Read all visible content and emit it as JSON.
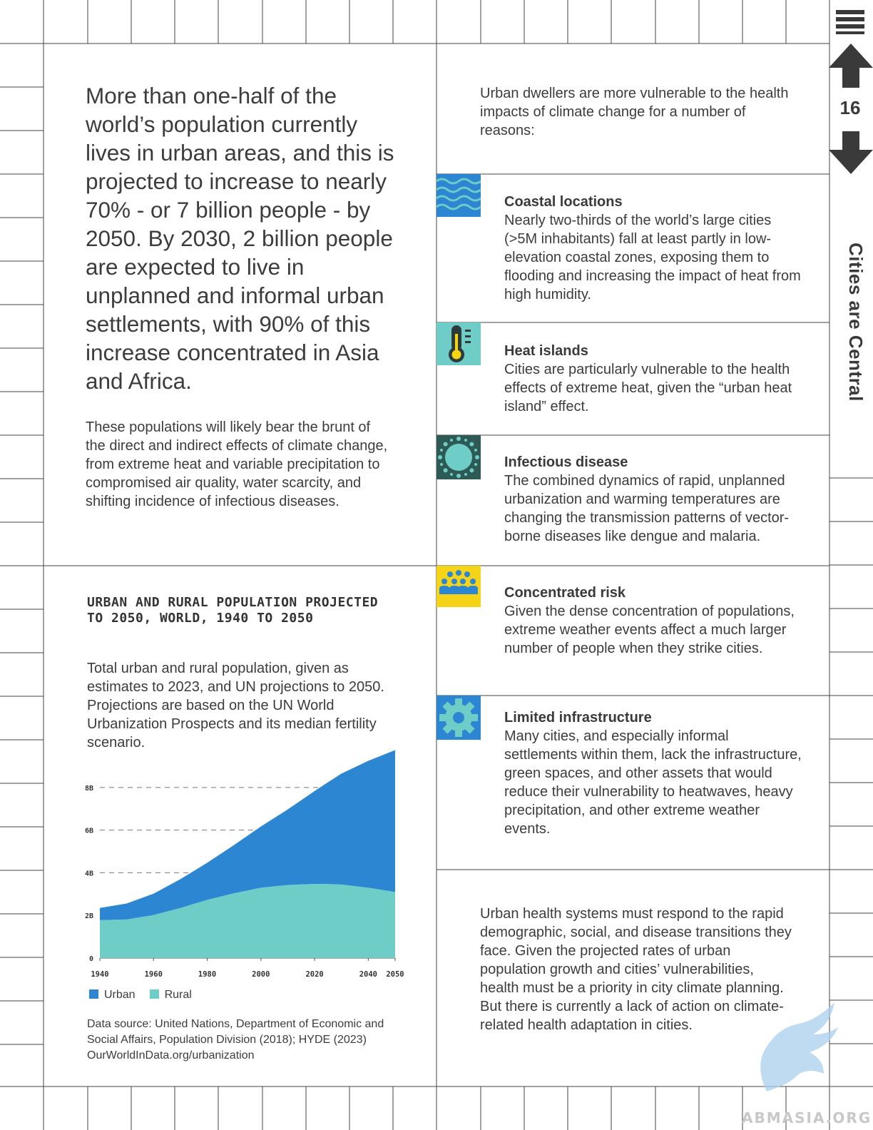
{
  "page": {
    "number": "16",
    "section_tab": "Cities are Central"
  },
  "left": {
    "lead": "More than one-half of the world’s population currently lives in urban areas, and this is projected to increase to nearly 70% - or 7 billion people - by 2050. By 2030, 2 billion people are expected to live in unplanned and informal urban settlements, with 90% of this increase concentrated in Asia and Africa.",
    "body": "These populations will likely bear the brunt of the direct and indirect effects of climate change, from extreme heat and variable precipitation to compromised air quality, water scarcity, and shifting incidence of infectious diseases."
  },
  "chart": {
    "title": "URBAN AND RURAL POPULATION PROJECTED TO 2050, WORLD, 1940 TO 2050",
    "subtitle": "Total urban and rural population, given as estimates to 2023, and UN projections to 2050. Projections are based on the UN World Urbanization Prospects and its median fertility scenario.",
    "source": "Data source: United Nations, Department of Economic and Social Affairs, Population Division (2018); HYDE (2023) OurWorldInData.org/urbanization",
    "legend": {
      "urban": "Urban",
      "rural": "Rural"
    }
  },
  "chart_data": {
    "type": "area",
    "stacked": true,
    "x": [
      1940,
      1950,
      1960,
      1970,
      1980,
      1990,
      2000,
      2010,
      2020,
      2023,
      2030,
      2040,
      2050
    ],
    "x_ticks": [
      "1940",
      "1960",
      "1980",
      "2000",
      "2020",
      "2040",
      "2050"
    ],
    "y_ticks": [
      "0",
      "2B",
      "4B",
      "6B",
      "8B"
    ],
    "ylim": [
      0,
      9.8
    ],
    "grid": "dashed horizontal",
    "legend_position": "bottom-left",
    "series": [
      {
        "name": "Rural",
        "color": "#6ecdc6",
        "values": [
          1.78,
          1.81,
          2.02,
          2.35,
          2.73,
          3.04,
          3.3,
          3.43,
          3.48,
          3.48,
          3.45,
          3.3,
          3.1
        ]
      },
      {
        "name": "Urban",
        "color": "#2d86d1",
        "values": [
          0.57,
          0.75,
          1.0,
          1.35,
          1.74,
          2.26,
          2.87,
          3.54,
          4.35,
          4.6,
          5.2,
          5.95,
          6.65
        ]
      }
    ]
  },
  "right": {
    "intro": "Urban dwellers are more vulnerable to the health impacts of climate change for a number of reasons:",
    "items": [
      {
        "icon": "waves-icon",
        "color": "#2d86d1",
        "title": "Coastal locations",
        "text": "Nearly two-thirds of the world’s large cities (>5M inhabitants) fall at least partly in low-elevation coastal zones, exposing them to flooding and increasing the impact of heat from high humidity."
      },
      {
        "icon": "thermometer-icon",
        "color": "#6ecdc6",
        "title": "Heat islands",
        "text": "Cities are particularly vulnerable to the health effects of extreme heat, given the “urban heat island” effect."
      },
      {
        "icon": "virus-icon",
        "color": "#2e5a55",
        "title": "Infectious disease",
        "text": "The combined dynamics of rapid, unplanned urbanization and warming temperatures are changing the transmission patterns of vector-borne diseases like dengue and malaria."
      },
      {
        "icon": "people-icon",
        "color": "#f5d417",
        "title": "Concentrated risk",
        "text": "Given the dense concentration of populations, extreme weather events affect a much larger number of people when they strike cities."
      },
      {
        "icon": "gear-icon",
        "color": "#2d86d1",
        "title": "Limited infrastructure",
        "text": "Many cities, and especially informal settlements within them, lack the infrastructure, green spaces, and other assets that would reduce their vulnerability to heatwaves, heavy precipitation, and other extreme weather events."
      }
    ],
    "closing": "Urban health systems must respond to the rapid demographic, social, and disease transitions they face. Given the projected rates of urban population growth and cities’ vulnerabilities, health must be a priority in city climate planning. But there is currently a lack of action on climate-related health adaptation in cities."
  },
  "watermark": "ABMASIA.ORG"
}
